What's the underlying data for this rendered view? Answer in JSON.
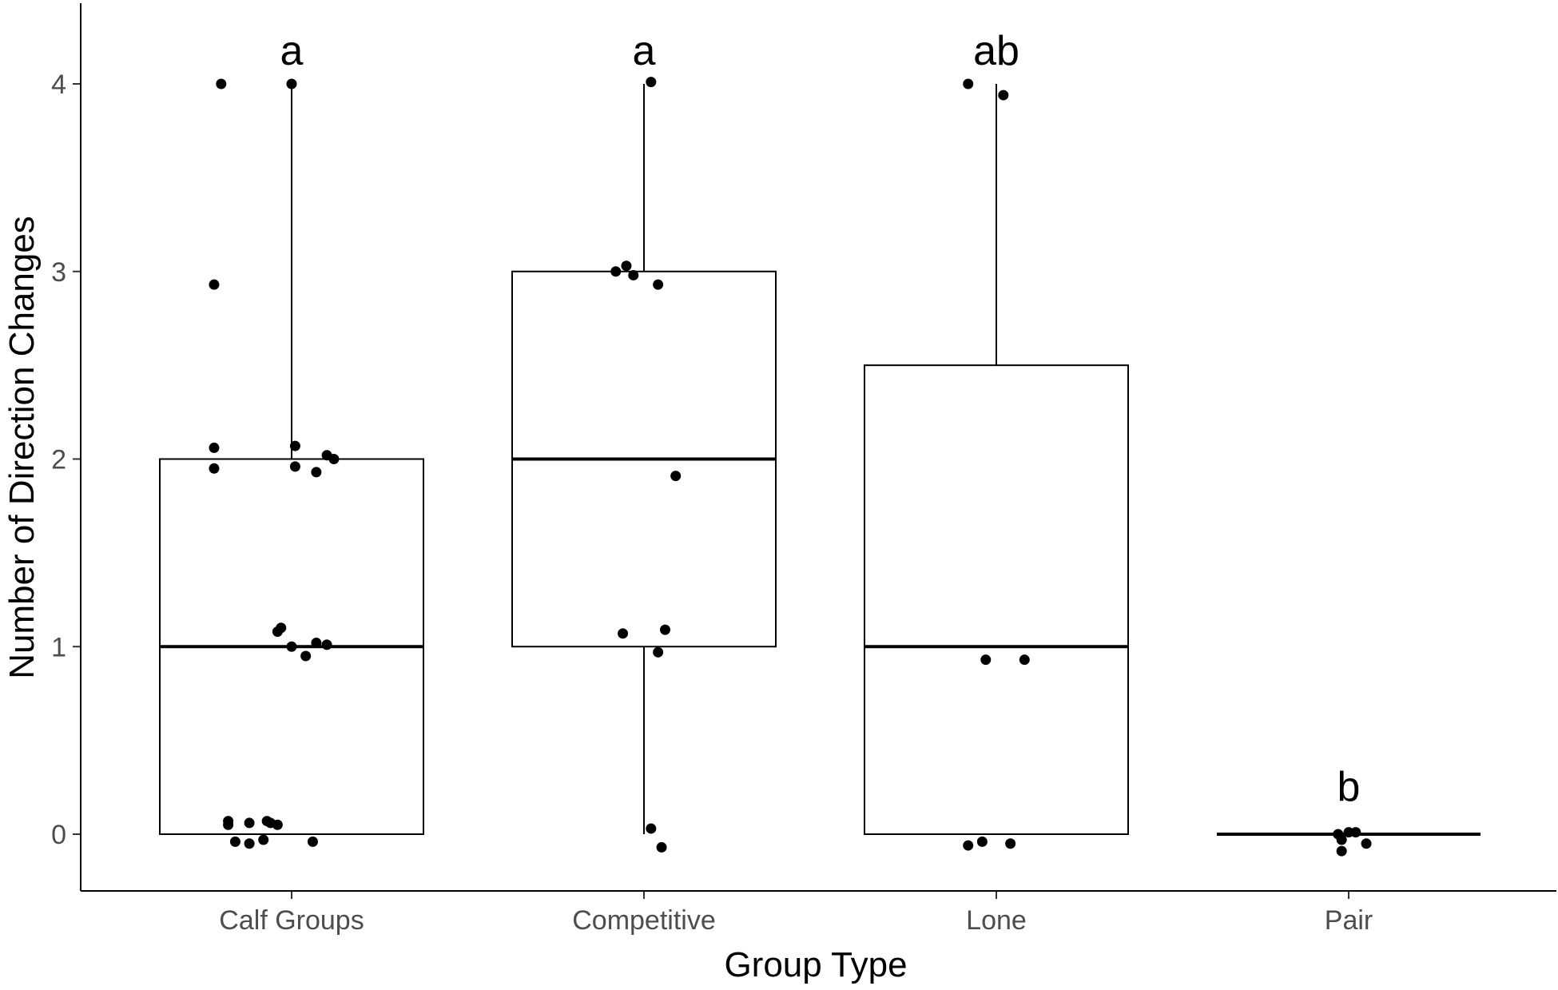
{
  "chart_data": {
    "type": "box",
    "title": "",
    "xlabel": "Group Type",
    "ylabel": "Number of Direction Changes",
    "ylim": [
      -0.3,
      4.3
    ],
    "yticks": [
      0,
      1,
      2,
      3,
      4
    ],
    "categories": [
      "Calf Groups",
      "Competitive",
      "Lone",
      "Pair"
    ],
    "groups": [
      {
        "name": "Calf Groups",
        "letter": "a",
        "min": 0,
        "q1": 0,
        "median": 1,
        "q3": 2,
        "max": 4,
        "points": [
          {
            "dx": -0.2,
            "y": 4.0
          },
          {
            "dx": 0.0,
            "y": 4.0
          },
          {
            "dx": -0.22,
            "y": 2.93
          },
          {
            "dx": -0.22,
            "y": 2.06
          },
          {
            "dx": 0.01,
            "y": 2.07
          },
          {
            "dx": 0.1,
            "y": 2.02
          },
          {
            "dx": 0.12,
            "y": 2.0
          },
          {
            "dx": -0.22,
            "y": 1.95
          },
          {
            "dx": 0.01,
            "y": 1.96
          },
          {
            "dx": 0.07,
            "y": 1.93
          },
          {
            "dx": -0.04,
            "y": 1.08
          },
          {
            "dx": -0.03,
            "y": 1.1
          },
          {
            "dx": 0.0,
            "y": 1.0
          },
          {
            "dx": 0.07,
            "y": 1.02
          },
          {
            "dx": 0.1,
            "y": 1.01
          },
          {
            "dx": 0.04,
            "y": 0.95
          },
          {
            "dx": -0.18,
            "y": 0.07
          },
          {
            "dx": -0.18,
            "y": 0.05
          },
          {
            "dx": -0.12,
            "y": 0.06
          },
          {
            "dx": -0.07,
            "y": 0.07
          },
          {
            "dx": -0.06,
            "y": 0.06
          },
          {
            "dx": -0.04,
            "y": 0.05
          },
          {
            "dx": -0.16,
            "y": -0.04
          },
          {
            "dx": -0.12,
            "y": -0.05
          },
          {
            "dx": -0.08,
            "y": -0.03
          },
          {
            "dx": 0.06,
            "y": -0.04
          }
        ]
      },
      {
        "name": "Competitive",
        "letter": "a",
        "min": 0,
        "q1": 1,
        "median": 2,
        "q3": 3,
        "max": 4,
        "points": [
          {
            "dx": 0.02,
            "y": 4.01
          },
          {
            "dx": -0.08,
            "y": 3.0
          },
          {
            "dx": -0.05,
            "y": 3.03
          },
          {
            "dx": -0.03,
            "y": 2.98
          },
          {
            "dx": 0.04,
            "y": 2.93
          },
          {
            "dx": 0.09,
            "y": 1.91
          },
          {
            "dx": -0.06,
            "y": 1.07
          },
          {
            "dx": 0.06,
            "y": 1.09
          },
          {
            "dx": 0.04,
            "y": 0.97
          },
          {
            "dx": 0.02,
            "y": 0.03
          },
          {
            "dx": 0.05,
            "y": -0.07
          }
        ]
      },
      {
        "name": "Lone",
        "letter": "ab",
        "min": 0,
        "q1": 0,
        "median": 1,
        "q3": 2.5,
        "max": 4,
        "points": [
          {
            "dx": -0.08,
            "y": 4.0
          },
          {
            "dx": 0.02,
            "y": 3.94
          },
          {
            "dx": -0.03,
            "y": 0.93
          },
          {
            "dx": 0.08,
            "y": 0.93
          },
          {
            "dx": -0.08,
            "y": -0.06
          },
          {
            "dx": -0.04,
            "y": -0.04
          },
          {
            "dx": 0.04,
            "y": -0.05
          }
        ]
      },
      {
        "name": "Pair",
        "letter": "b",
        "min": 0,
        "q1": 0,
        "median": 0,
        "q3": 0,
        "max": 0,
        "points": [
          {
            "dx": -0.03,
            "y": 0.0
          },
          {
            "dx": 0.0,
            "y": 0.01
          },
          {
            "dx": 0.02,
            "y": 0.01
          },
          {
            "dx": -0.02,
            "y": -0.03
          },
          {
            "dx": 0.05,
            "y": -0.05
          },
          {
            "dx": -0.02,
            "y": -0.09
          }
        ]
      }
    ],
    "grid": false,
    "legend": "none"
  }
}
